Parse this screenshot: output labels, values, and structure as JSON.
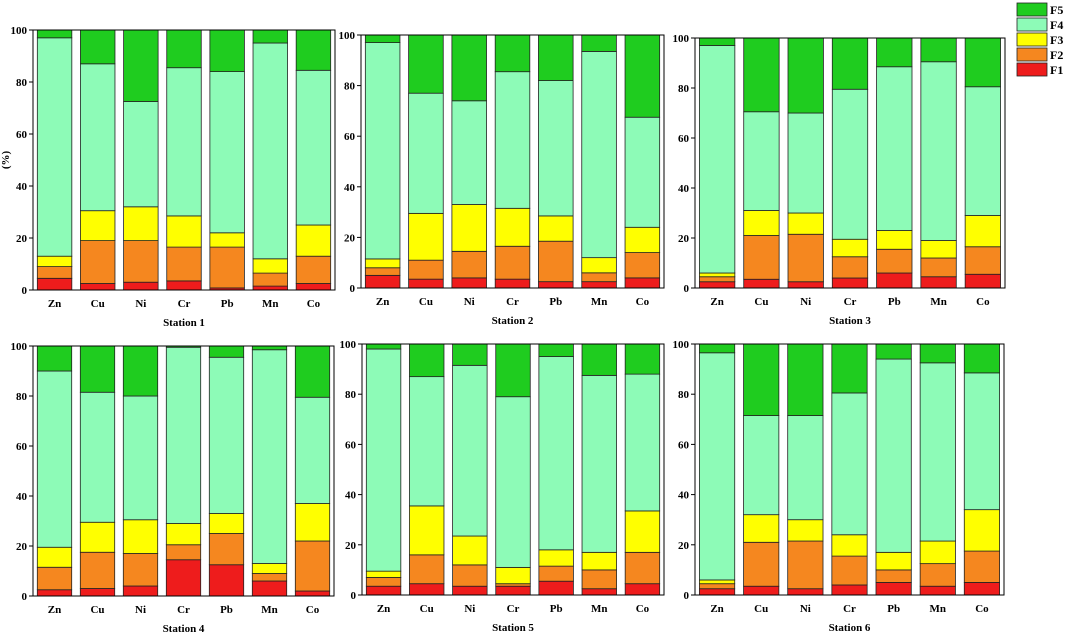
{
  "y_axis_label": "(%)",
  "colors": {
    "F1": "#ee1c1c",
    "F2": "#f5871f",
    "F3": "#ffff00",
    "F4": "#8dfbb7",
    "F5": "#1fcc1f"
  },
  "chart_data": {
    "type": "bar",
    "stacked": true,
    "categories": [
      "Zn",
      "Cu",
      "Ni",
      "Cr",
      "Pb",
      "Mn",
      "Co"
    ],
    "ylim": [
      0,
      100
    ],
    "yticks": [
      0,
      20,
      40,
      60,
      80,
      100
    ],
    "ylabel": "(%)",
    "legend": [
      "F5",
      "F4",
      "F3",
      "F2",
      "F1"
    ],
    "legend_position": "top-right",
    "panels": [
      {
        "title": "Station 1",
        "series": [
          {
            "name": "F1",
            "values": [
              4.5,
              2.5,
              3,
              3.5,
              0.8,
              1.5,
              2.5
            ]
          },
          {
            "name": "F2",
            "values": [
              4.5,
              16.5,
              16,
              13,
              15.7,
              5,
              10.5
            ]
          },
          {
            "name": "F3",
            "values": [
              4,
              11.5,
              13,
              12,
              5.5,
              5.5,
              12
            ]
          },
          {
            "name": "F4",
            "values": [
              84,
              56.5,
              40.5,
              57,
              62,
              83,
              59.5
            ]
          },
          {
            "name": "F5",
            "values": [
              3,
              13,
              27.5,
              14.5,
              16,
              5,
              15.5
            ]
          }
        ]
      },
      {
        "title": "Station 2",
        "series": [
          {
            "name": "F1",
            "values": [
              5,
              3.5,
              4,
              3.5,
              2.5,
              2.5,
              4
            ]
          },
          {
            "name": "F2",
            "values": [
              3,
              7.5,
              10.5,
              13,
              16,
              3.5,
              10
            ]
          },
          {
            "name": "F3",
            "values": [
              3.5,
              18.5,
              18.5,
              15,
              10,
              6,
              10
            ]
          },
          {
            "name": "F4",
            "values": [
              85.5,
              47.5,
              41,
              54,
              53.5,
              81.5,
              43.5
            ]
          },
          {
            "name": "F5",
            "values": [
              3,
              23,
              26,
              14.5,
              18,
              6.5,
              32.5
            ]
          }
        ]
      },
      {
        "title": "Station 3",
        "series": [
          {
            "name": "F1",
            "values": [
              2.5,
              3.5,
              2.5,
              4,
              6,
              4.5,
              5.5
            ]
          },
          {
            "name": "F2",
            "values": [
              2,
              17.5,
              19,
              8.5,
              9.5,
              7.5,
              11
            ]
          },
          {
            "name": "F3",
            "values": [
              1.5,
              10,
              8.5,
              7,
              7.5,
              7,
              12.5
            ]
          },
          {
            "name": "F4",
            "values": [
              91,
              39.5,
              40,
              60,
              65.5,
              71.5,
              51.5
            ]
          },
          {
            "name": "F5",
            "values": [
              3,
              29.5,
              30,
              20.5,
              11.5,
              9.5,
              19.5
            ]
          }
        ]
      },
      {
        "title": "Station 4",
        "series": [
          {
            "name": "F1",
            "values": [
              2.5,
              3,
              4,
              14.5,
              12.5,
              6,
              2
            ]
          },
          {
            "name": "F2",
            "values": [
              9,
              14.5,
              13,
              6,
              12.5,
              3,
              20
            ]
          },
          {
            "name": "F3",
            "values": [
              8,
              12,
              13.5,
              8.5,
              8,
              4,
              15
            ]
          },
          {
            "name": "F4",
            "values": [
              70.5,
              52,
              49.5,
              70.5,
              62.5,
              85.5,
              42.5
            ]
          },
          {
            "name": "F5",
            "values": [
              10,
              18.5,
              20,
              0.5,
              4.5,
              1.5,
              20.5
            ]
          }
        ]
      },
      {
        "title": "Station 5",
        "series": [
          {
            "name": "F1",
            "values": [
              3.5,
              4.5,
              3.5,
              3.5,
              5.5,
              2.5,
              4.5
            ]
          },
          {
            "name": "F2",
            "values": [
              3.5,
              11.5,
              8.5,
              1,
              6,
              7.5,
              12.5
            ]
          },
          {
            "name": "F3",
            "values": [
              2.5,
              19.5,
              11.5,
              6.5,
              6.5,
              7,
              16.5
            ]
          },
          {
            "name": "F4",
            "values": [
              88.5,
              51.5,
              68,
              68,
              77,
              70.5,
              54.5
            ]
          },
          {
            "name": "F5",
            "values": [
              2,
              13,
              8.5,
              21,
              5,
              12.5,
              12
            ]
          }
        ]
      },
      {
        "title": "Station 6",
        "series": [
          {
            "name": "F1",
            "values": [
              2.5,
              3.5,
              2.5,
              4,
              5,
              3.5,
              5
            ]
          },
          {
            "name": "F2",
            "values": [
              2,
              17.5,
              19,
              11.5,
              5,
              9,
              12.5
            ]
          },
          {
            "name": "F3",
            "values": [
              1.5,
              11,
              8.5,
              8.5,
              7,
              9,
              16.5
            ]
          },
          {
            "name": "F4",
            "values": [
              90.5,
              39.5,
              41.5,
              56.5,
              77,
              71,
              54.5
            ]
          },
          {
            "name": "F5",
            "values": [
              3.5,
              28.5,
              28.5,
              19.5,
              6,
              7.5,
              11.5
            ]
          }
        ]
      }
    ]
  }
}
